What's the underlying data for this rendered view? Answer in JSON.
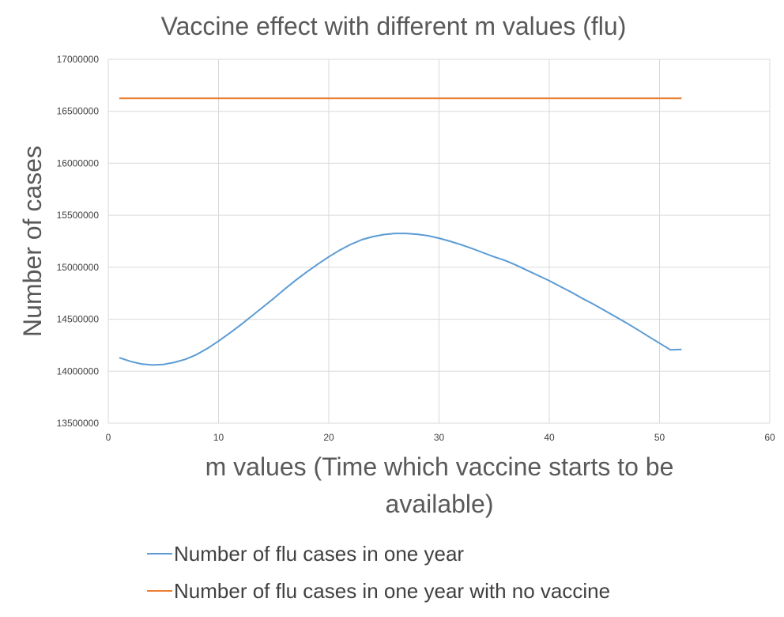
{
  "chart_data": {
    "type": "line",
    "title": "Vaccine effect with different m values  (flu)",
    "xlabel_lines": [
      "m values (Time which vaccine starts to be",
      "available)"
    ],
    "ylabel": "Number of cases",
    "xlim": [
      0,
      60
    ],
    "ylim": [
      13500000,
      17000000
    ],
    "x_ticks": [
      "0",
      "10",
      "20",
      "30",
      "40",
      "50",
      "60"
    ],
    "y_ticks": [
      "13500000",
      "14000000",
      "14500000",
      "15000000",
      "15500000",
      "16000000",
      "16500000",
      "17000000"
    ],
    "grid": true,
    "legend_position": "bottom",
    "series": [
      {
        "name": "Number of flu cases in one year",
        "color": "#5b9bd5",
        "x": [
          1,
          2,
          3,
          4,
          5,
          6,
          7,
          8,
          9,
          10,
          11,
          12,
          13,
          14,
          15,
          16,
          17,
          18,
          19,
          20,
          21,
          22,
          23,
          24,
          25,
          26,
          27,
          28,
          29,
          30,
          31,
          32,
          33,
          34,
          35,
          36,
          37,
          38,
          39,
          40,
          41,
          42,
          43,
          44,
          45,
          46,
          47,
          48,
          49,
          50,
          51,
          52
        ],
        "values": [
          14130000,
          14095000,
          14070000,
          14060000,
          14065000,
          14085000,
          14115000,
          14160000,
          14220000,
          14290000,
          14365000,
          14445000,
          14530000,
          14615000,
          14700000,
          14790000,
          14875000,
          14955000,
          15030000,
          15100000,
          15165000,
          15220000,
          15265000,
          15295000,
          15315000,
          15325000,
          15325000,
          15318000,
          15303000,
          15280000,
          15250000,
          15217000,
          15180000,
          15140000,
          15100000,
          15065000,
          15020000,
          14970000,
          14920000,
          14870000,
          14815000,
          14760000,
          14700000,
          14645000,
          14585000,
          14525000,
          14465000,
          14400000,
          14335000,
          14270000,
          14205000,
          14210000
        ]
      },
      {
        "name": "Number of flu cases in one year with no vaccine",
        "color": "#ed7d31",
        "x": [
          1,
          52
        ],
        "values": [
          16625000,
          16625000
        ]
      }
    ]
  }
}
